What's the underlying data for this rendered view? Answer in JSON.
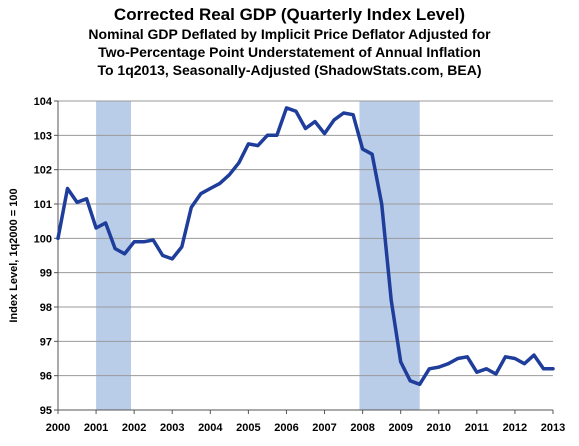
{
  "chart_data": {
    "type": "line",
    "title": "Corrected Real GDP (Quarterly Index Level)",
    "subtitle_lines": [
      "Nominal GDP Deflated by Implicit Price Deflator Adjusted for",
      "Two-Percentage Point Understatement of Annual Inflation",
      "To 1q2013, Seasonally-Adjusted (ShadowStats.com, BEA)"
    ],
    "ylabel": "Index Level, 1q2000 = 100",
    "xlabel": "",
    "ylim": [
      95,
      104
    ],
    "xlim": [
      2000,
      2013
    ],
    "y_ticks": [
      "95",
      "96",
      "97",
      "98",
      "99",
      "100",
      "101",
      "102",
      "103",
      "104"
    ],
    "x_ticks": [
      "2000",
      "2001",
      "2002",
      "2003",
      "2004",
      "2005",
      "2006",
      "2007",
      "2008",
      "2009",
      "2010",
      "2011",
      "2012",
      "2013"
    ],
    "grid": true,
    "line_color": "#1f3d9a",
    "recession_color": "#b9cde9",
    "recessions": [
      {
        "start": 2001.0,
        "end": 2001.917
      },
      {
        "start": 2007.917,
        "end": 2009.5
      }
    ],
    "series": [
      {
        "x": [
          2000.0,
          2000.25,
          2000.5,
          2000.75,
          2001.0,
          2001.25,
          2001.5,
          2001.75,
          2002.0,
          2002.25,
          2002.5,
          2002.75,
          2003.0,
          2003.25,
          2003.5,
          2003.75,
          2004.0,
          2004.25,
          2004.5,
          2004.75,
          2005.0,
          2005.25,
          2005.5,
          2005.75,
          2006.0,
          2006.25,
          2006.5,
          2006.75,
          2007.0,
          2007.25,
          2007.5,
          2007.75,
          2008.0,
          2008.25,
          2008.5,
          2008.75,
          2009.0,
          2009.25,
          2009.5,
          2009.75,
          2010.0,
          2010.25,
          2010.5,
          2010.75,
          2011.0,
          2011.25,
          2011.5,
          2011.75,
          2012.0,
          2012.25,
          2012.5,
          2012.75,
          2013.0
        ],
        "y": [
          100.0,
          101.45,
          101.05,
          101.15,
          100.3,
          100.45,
          99.7,
          99.55,
          99.9,
          99.9,
          99.95,
          99.5,
          99.4,
          99.75,
          100.9,
          101.3,
          101.45,
          101.6,
          101.85,
          102.2,
          102.75,
          102.7,
          103.0,
          103.0,
          103.8,
          103.7,
          103.2,
          103.4,
          103.05,
          103.45,
          103.65,
          103.6,
          102.6,
          102.45,
          101.0,
          98.2,
          96.4,
          95.85,
          95.75,
          96.2,
          96.25,
          96.35,
          96.5,
          96.55,
          96.1,
          96.2,
          96.05,
          96.55,
          96.5,
          96.35,
          96.6,
          96.2,
          96.2
        ]
      }
    ]
  }
}
